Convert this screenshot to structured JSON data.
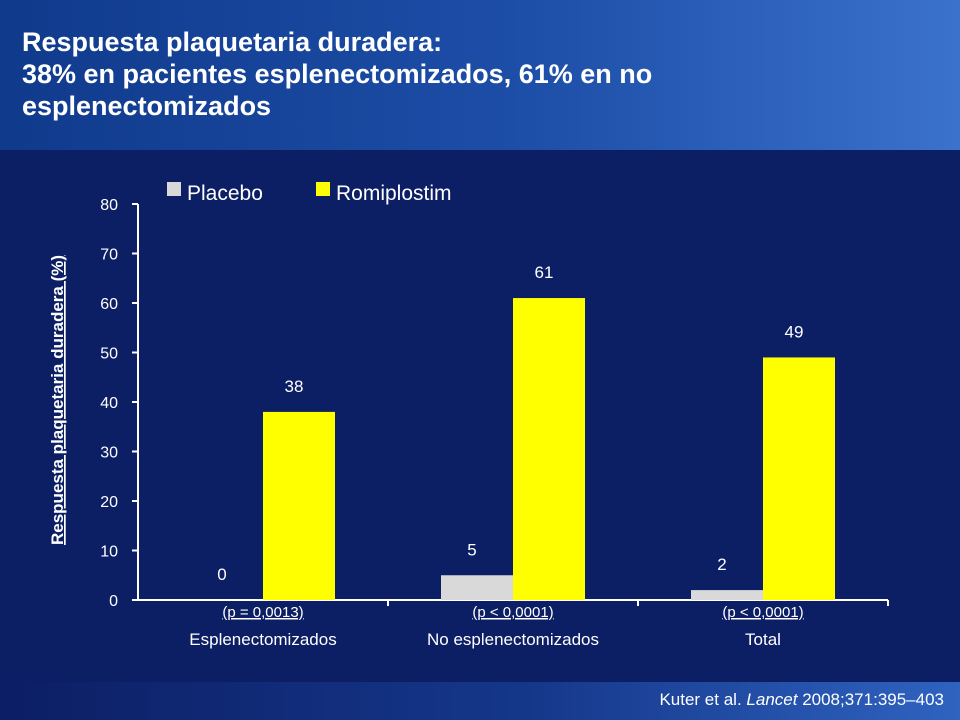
{
  "slide": {
    "title_lines": [
      "Respuesta plaquetaria duradera:",
      "38% en pacientes esplenectomizados, 61% en no",
      "esplenectomizados"
    ],
    "citation": {
      "authors": "Kuter et al.",
      "journal": "Lancet",
      "details": "2008;371:395–403"
    }
  },
  "colors": {
    "background": "#0c1e64",
    "placebo": "#d9d9d9",
    "romiplostim": "#ffff00",
    "text": "#ffffff"
  },
  "chart_data": {
    "type": "bar",
    "ylabel": "Respuesta plaquetaria duradera (%)",
    "ylim": [
      0,
      80
    ],
    "yticks": [
      0,
      10,
      20,
      30,
      40,
      50,
      60,
      70,
      80
    ],
    "grid": false,
    "legend": "top-left",
    "categories": [
      "Esplenectomizados",
      "No esplenectomizados",
      "Total"
    ],
    "p_values": [
      "(p = 0,0013)",
      "(p < 0,0001)",
      "(p < 0,0001)"
    ],
    "series": [
      {
        "name": "Placebo",
        "values": [
          0,
          5,
          2
        ]
      },
      {
        "name": "Romiplostim",
        "values": [
          38,
          61,
          49
        ]
      }
    ]
  }
}
